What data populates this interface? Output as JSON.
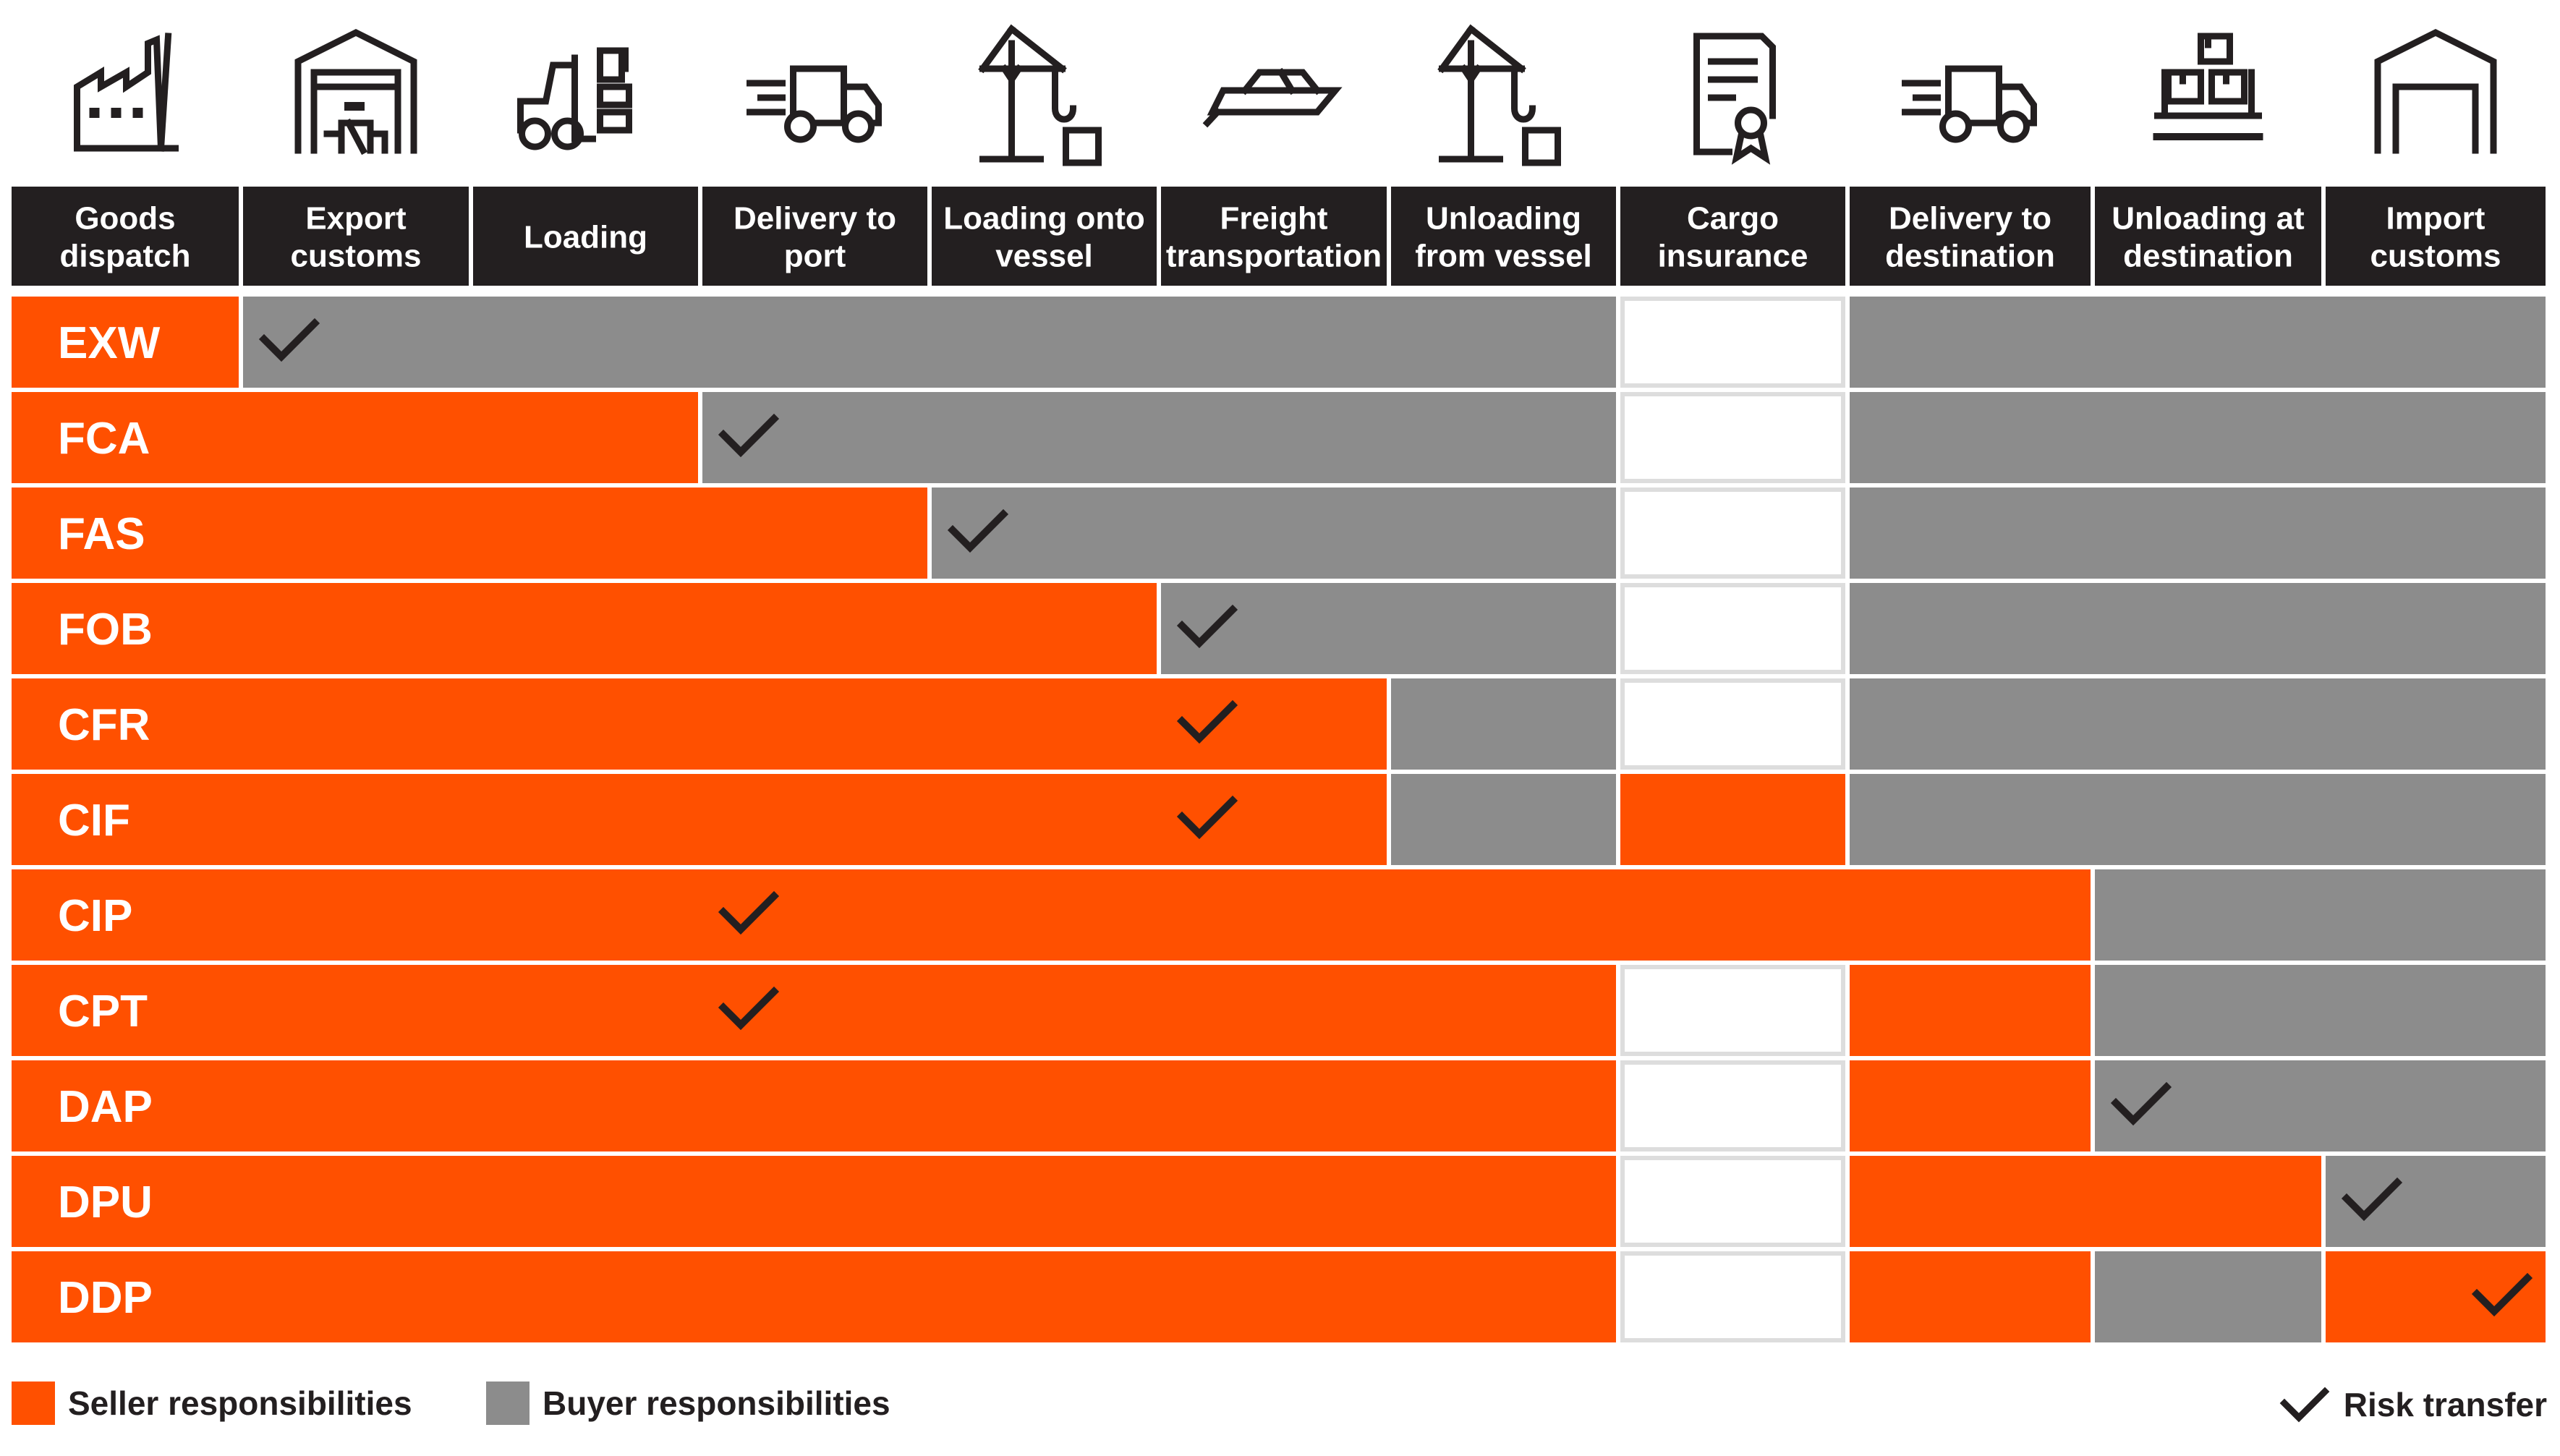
{
  "columns": [
    {
      "label_lines": [
        "Goods",
        "dispatch"
      ],
      "icon": "factory-icon"
    },
    {
      "label_lines": [
        "Export",
        "customs"
      ],
      "icon": "customs-warehouse-icon"
    },
    {
      "label_lines": [
        "Loading"
      ],
      "icon": "forklift-icon"
    },
    {
      "label_lines": [
        "Delivery to",
        "port"
      ],
      "icon": "delivery-truck-icon"
    },
    {
      "label_lines": [
        "Loading onto",
        "vessel"
      ],
      "icon": "crane-icon"
    },
    {
      "label_lines": [
        "Freight",
        "transportation"
      ],
      "icon": "ship-icon"
    },
    {
      "label_lines": [
        "Unloading",
        "from vessel"
      ],
      "icon": "crane-icon"
    },
    {
      "label_lines": [
        "Cargo",
        "insurance"
      ],
      "icon": "insurance-certificate-icon"
    },
    {
      "label_lines": [
        "Delivery to",
        "destination"
      ],
      "icon": "delivery-truck-icon"
    },
    {
      "label_lines": [
        "Unloading at",
        "destination"
      ],
      "icon": "stacked-boxes-icon"
    },
    {
      "label_lines": [
        "Import",
        "customs"
      ],
      "icon": "warehouse-icon"
    }
  ],
  "rows": [
    {
      "term": "EXW",
      "cells": [
        "S",
        "B",
        "B",
        "B",
        "B",
        "B",
        "B",
        "W",
        "B",
        "B",
        "B"
      ],
      "risk_transfer_column": 1
    },
    {
      "term": "FCA",
      "cells": [
        "S",
        "S",
        "S",
        "B",
        "B",
        "B",
        "B",
        "W",
        "B",
        "B",
        "B"
      ],
      "risk_transfer_column": 3
    },
    {
      "term": "FAS",
      "cells": [
        "S",
        "S",
        "S",
        "S",
        "B",
        "B",
        "B",
        "W",
        "B",
        "B",
        "B"
      ],
      "risk_transfer_column": 4
    },
    {
      "term": "FOB",
      "cells": [
        "S",
        "S",
        "S",
        "S",
        "S",
        "B",
        "B",
        "W",
        "B",
        "B",
        "B"
      ],
      "risk_transfer_column": 5
    },
    {
      "term": "CFR",
      "cells": [
        "S",
        "S",
        "S",
        "S",
        "S",
        "S",
        "B",
        "W",
        "B",
        "B",
        "B"
      ],
      "risk_transfer_column": 5
    },
    {
      "term": "CIF",
      "cells": [
        "S",
        "S",
        "S",
        "S",
        "S",
        "S",
        "B",
        "S",
        "B",
        "B",
        "B"
      ],
      "risk_transfer_column": 5
    },
    {
      "term": "CIP",
      "cells": [
        "S",
        "S",
        "S",
        "S",
        "S",
        "S",
        "S",
        "S",
        "S",
        "B",
        "B"
      ],
      "risk_transfer_column": 3
    },
    {
      "term": "CPT",
      "cells": [
        "S",
        "S",
        "S",
        "S",
        "S",
        "S",
        "S",
        "W",
        "S",
        "B",
        "B"
      ],
      "risk_transfer_column": 3
    },
    {
      "term": "DAP",
      "cells": [
        "S",
        "S",
        "S",
        "S",
        "S",
        "S",
        "S",
        "W",
        "S",
        "B",
        "B"
      ],
      "risk_transfer_column": 9
    },
    {
      "term": "DPU",
      "cells": [
        "S",
        "S",
        "S",
        "S",
        "S",
        "S",
        "S",
        "W",
        "S",
        "S",
        "B"
      ],
      "risk_transfer_column": 10
    },
    {
      "term": "DDP",
      "cells": [
        "S",
        "S",
        "S",
        "S",
        "S",
        "S",
        "S",
        "W",
        "S",
        "B",
        "S"
      ],
      "risk_transfer_column": 10
    }
  ],
  "legend": {
    "seller_label": "Seller responsibilities",
    "buyer_label": "Buyer responsibilities",
    "risk_label": "Risk transfer"
  },
  "colors": {
    "seller": "#FF5000",
    "buyer": "#8C8C8C",
    "header": "#231F20",
    "header_text": "#FFFFFF",
    "check": "#231F20",
    "white_cell_border": "#DDDDDD",
    "background": "#FFFFFF"
  }
}
